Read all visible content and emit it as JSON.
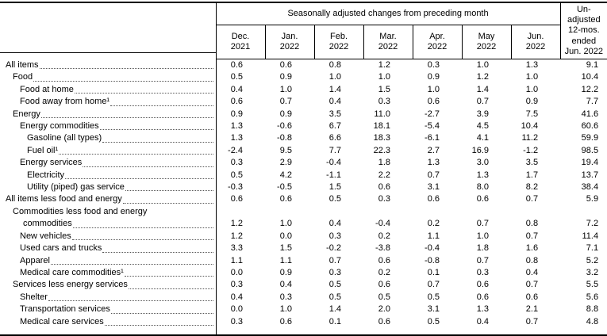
{
  "header": {
    "group_title": "Seasonally adjusted changes from preceding month",
    "months": [
      "Dec.\n2021",
      "Jan.\n2022",
      "Feb.\n2022",
      "Mar.\n2022",
      "Apr.\n2022",
      "May\n2022",
      "Jun.\n2022"
    ],
    "unadjusted_title": "Un-\nadjusted\n12-mos.\nended\nJun. 2022"
  },
  "table": {
    "rows": [
      {
        "label": "All items",
        "indent": 0,
        "values": [
          "0.6",
          "0.6",
          "0.8",
          "1.2",
          "0.3",
          "1.0",
          "1.3",
          "9.1"
        ]
      },
      {
        "label": "Food",
        "indent": 1,
        "values": [
          "0.5",
          "0.9",
          "1.0",
          "1.0",
          "0.9",
          "1.2",
          "1.0",
          "10.4"
        ]
      },
      {
        "label": "Food at home",
        "indent": 2,
        "values": [
          "0.4",
          "1.0",
          "1.4",
          "1.5",
          "1.0",
          "1.4",
          "1.0",
          "12.2"
        ]
      },
      {
        "label": "Food away from home¹",
        "indent": 2,
        "values": [
          "0.6",
          "0.7",
          "0.4",
          "0.3",
          "0.6",
          "0.7",
          "0.9",
          "7.7"
        ]
      },
      {
        "label": "Energy",
        "indent": 1,
        "values": [
          "0.9",
          "0.9",
          "3.5",
          "11.0",
          "-2.7",
          "3.9",
          "7.5",
          "41.6"
        ]
      },
      {
        "label": "Energy commodities",
        "indent": 2,
        "values": [
          "1.3",
          "-0.6",
          "6.7",
          "18.1",
          "-5.4",
          "4.5",
          "10.4",
          "60.6"
        ]
      },
      {
        "label": "Gasoline (all types)",
        "indent": 3,
        "values": [
          "1.3",
          "-0.8",
          "6.6",
          "18.3",
          "-6.1",
          "4.1",
          "11.2",
          "59.9"
        ]
      },
      {
        "label": "Fuel oil¹",
        "indent": 3,
        "values": [
          "-2.4",
          "9.5",
          "7.7",
          "22.3",
          "2.7",
          "16.9",
          "-1.2",
          "98.5"
        ]
      },
      {
        "label": "Energy services",
        "indent": 2,
        "values": [
          "0.3",
          "2.9",
          "-0.4",
          "1.8",
          "1.3",
          "3.0",
          "3.5",
          "19.4"
        ]
      },
      {
        "label": "Electricity",
        "indent": 3,
        "values": [
          "0.5",
          "4.2",
          "-1.1",
          "2.2",
          "0.7",
          "1.3",
          "1.7",
          "13.7"
        ]
      },
      {
        "label": "Utility (piped) gas service",
        "indent": 3,
        "values": [
          "-0.3",
          "-0.5",
          "1.5",
          "0.6",
          "3.1",
          "8.0",
          "8.2",
          "38.4"
        ]
      },
      {
        "label": "All items less food and energy",
        "indent": 0,
        "values": [
          "0.6",
          "0.6",
          "0.5",
          "0.3",
          "0.6",
          "0.6",
          "0.7",
          "5.9"
        ]
      },
      {
        "label": "Commodities less food and energy",
        "label2": "commodities",
        "indent": 1,
        "values": [
          "1.2",
          "1.0",
          "0.4",
          "-0.4",
          "0.2",
          "0.7",
          "0.8",
          "7.2"
        ]
      },
      {
        "label": "New vehicles",
        "indent": 2,
        "values": [
          "1.2",
          "0.0",
          "0.3",
          "0.2",
          "1.1",
          "1.0",
          "0.7",
          "11.4"
        ]
      },
      {
        "label": "Used cars and trucks",
        "indent": 2,
        "values": [
          "3.3",
          "1.5",
          "-0.2",
          "-3.8",
          "-0.4",
          "1.8",
          "1.6",
          "7.1"
        ]
      },
      {
        "label": "Apparel",
        "indent": 2,
        "values": [
          "1.1",
          "1.1",
          "0.7",
          "0.6",
          "-0.8",
          "0.7",
          "0.8",
          "5.2"
        ]
      },
      {
        "label": "Medical care commodities¹",
        "indent": 2,
        "values": [
          "0.0",
          "0.9",
          "0.3",
          "0.2",
          "0.1",
          "0.3",
          "0.4",
          "3.2"
        ]
      },
      {
        "label": "Services less energy services",
        "indent": 1,
        "values": [
          "0.3",
          "0.4",
          "0.5",
          "0.6",
          "0.7",
          "0.6",
          "0.7",
          "5.5"
        ]
      },
      {
        "label": "Shelter",
        "indent": 2,
        "values": [
          "0.4",
          "0.3",
          "0.5",
          "0.5",
          "0.5",
          "0.6",
          "0.6",
          "5.6"
        ]
      },
      {
        "label": "Transportation services",
        "indent": 2,
        "values": [
          "0.0",
          "1.0",
          "1.4",
          "2.0",
          "3.1",
          "1.3",
          "2.1",
          "8.8"
        ]
      },
      {
        "label": "Medical care services",
        "indent": 2,
        "values": [
          "0.3",
          "0.6",
          "0.1",
          "0.6",
          "0.5",
          "0.4",
          "0.7",
          "4.8"
        ]
      }
    ]
  }
}
